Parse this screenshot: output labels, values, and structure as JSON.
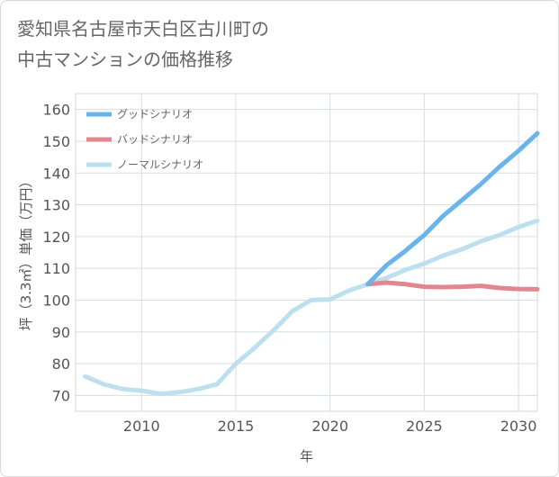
{
  "title_lines": [
    "愛知県名古屋市天白区古川町の",
    "中古マンションの価格推移"
  ],
  "chart_data": {
    "type": "line",
    "title": "愛知県名古屋市天白区古川町の中古マンションの価格推移",
    "xlabel": "年",
    "ylabel": "坪（3.3㎡）単価（万円）",
    "xlim": [
      2006.5,
      2031
    ],
    "ylim": [
      65,
      165
    ],
    "x_ticks": [
      2010,
      2015,
      2020,
      2025,
      2030
    ],
    "y_ticks": [
      70,
      80,
      90,
      100,
      110,
      120,
      130,
      140,
      150,
      160
    ],
    "grid": true,
    "legend_position": "top-left",
    "series": [
      {
        "name": "グッドシナリオ",
        "color": "#6ab4ec",
        "x": [
          2022,
          2023,
          2024,
          2025,
          2026,
          2027,
          2028,
          2029,
          2030,
          2031
        ],
        "y": [
          105,
          111,
          115.5,
          120.5,
          126.5,
          131.5,
          136.5,
          142,
          147,
          152.5
        ]
      },
      {
        "name": "バッドシナリオ",
        "color": "#e0878f",
        "x": [
          2022,
          2023,
          2024,
          2025,
          2026,
          2027,
          2028,
          2029,
          2030,
          2031
        ],
        "y": [
          105,
          105.5,
          105,
          104.2,
          104.1,
          104.2,
          104.5,
          103.8,
          103.5,
          103.4
        ]
      },
      {
        "name": "ノーマルシナリオ",
        "color": "#bde0ef",
        "x": [
          2007,
          2008,
          2009,
          2010,
          2011,
          2012,
          2013,
          2014,
          2015,
          2016,
          2017,
          2018,
          2019,
          2020,
          2021,
          2022,
          2023,
          2024,
          2025,
          2026,
          2027,
          2028,
          2029,
          2030,
          2031
        ],
        "y": [
          76,
          73.5,
          72,
          71.5,
          70.5,
          71,
          72,
          73.5,
          80,
          85,
          90.5,
          96.5,
          100,
          100.2,
          103,
          105,
          107,
          109.5,
          111.5,
          114,
          116,
          118.5,
          120.5,
          123,
          125
        ]
      }
    ]
  }
}
